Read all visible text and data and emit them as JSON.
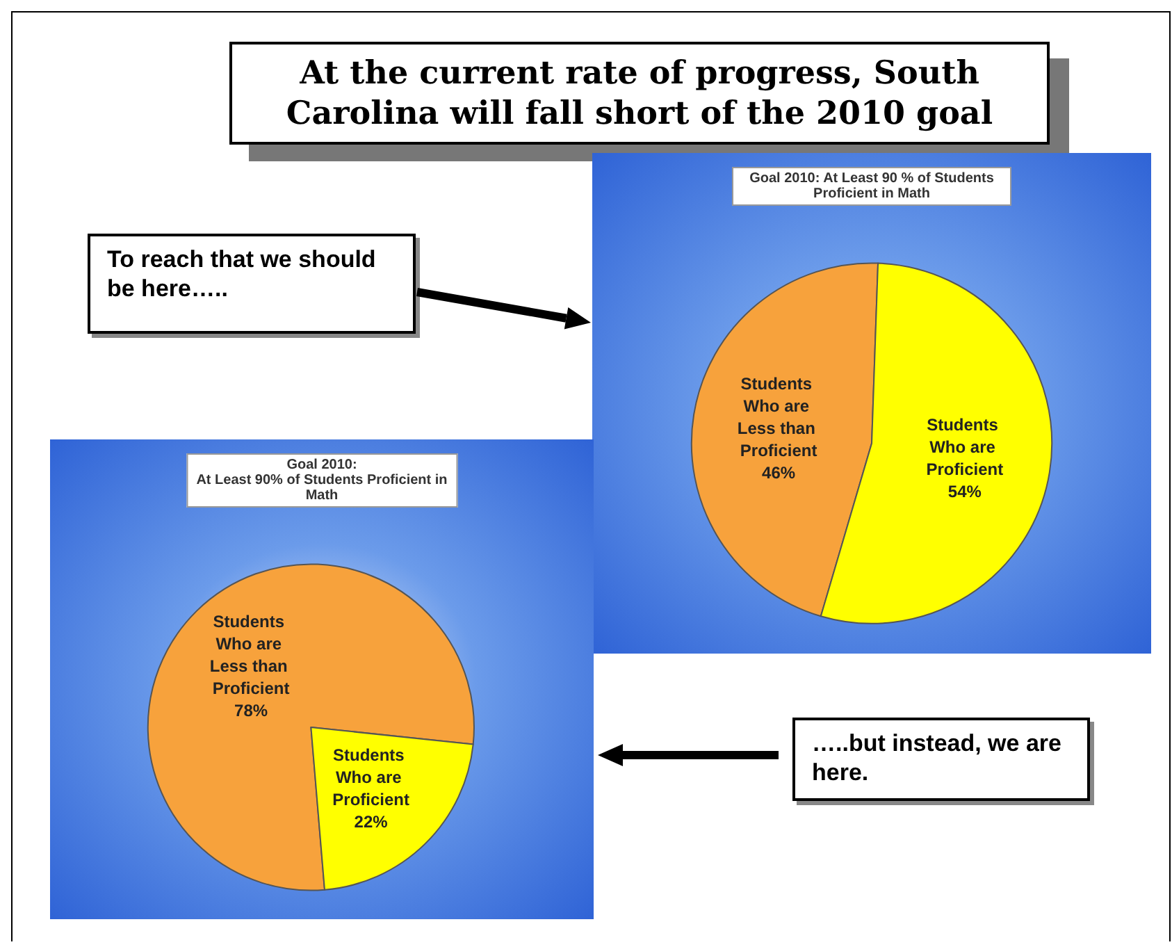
{
  "chart_data": [
    {
      "type": "other",
      "title": "At the current rate of progress, South Carolina will fall short of the 2010 goal"
    },
    {
      "type": "pie",
      "title": "Goal 2010: At Least 90 % of Students Proficient in Math",
      "categories": [
        "Students Who are Less than Proficient",
        "Students Who are Proficient"
      ],
      "values": [
        46,
        54
      ],
      "value_labels": [
        "46%",
        "54%"
      ],
      "colors": [
        "#f7a23c",
        "#ffff00"
      ],
      "annotations": [
        "To reach that we should be here….."
      ]
    },
    {
      "type": "pie",
      "title": "Goal 2010:\nAt Least 90% of Students Proficient in Math",
      "categories": [
        "Students Who are Less than Proficient",
        "Students Who are Proficient"
      ],
      "values": [
        78,
        22
      ],
      "value_labels": [
        "78%",
        "22%"
      ],
      "colors": [
        "#f7a23c",
        "#ffff00"
      ],
      "annotations": [
        "…..but instead, we are here."
      ]
    }
  ]
}
